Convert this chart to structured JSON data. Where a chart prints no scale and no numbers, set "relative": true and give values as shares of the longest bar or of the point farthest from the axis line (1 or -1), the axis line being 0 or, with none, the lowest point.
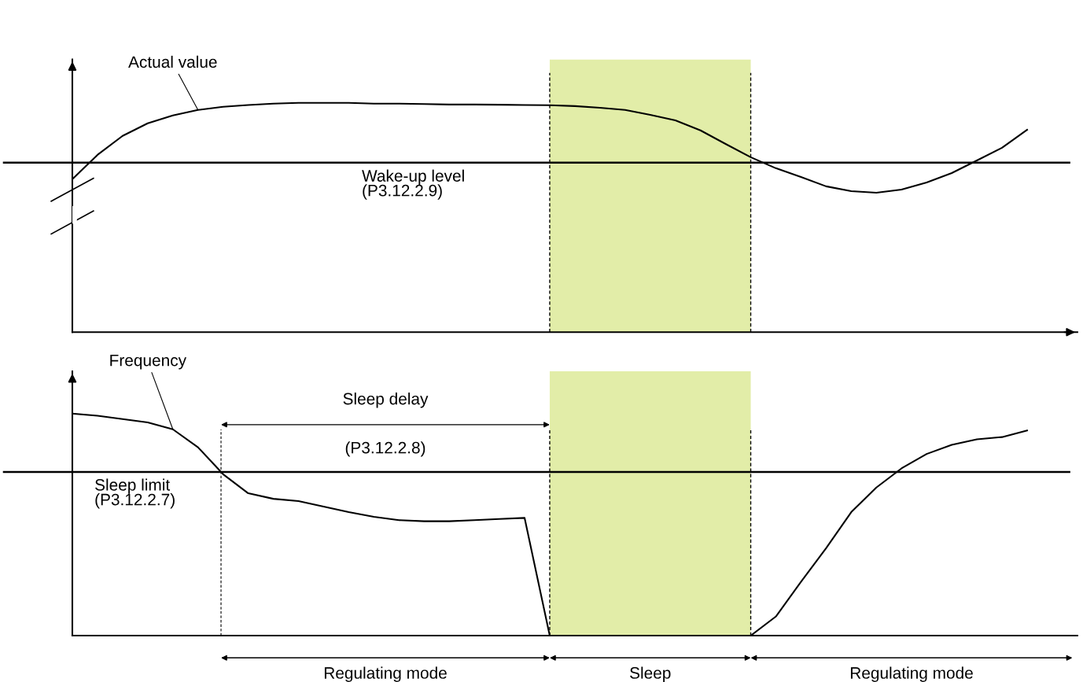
{
  "chart_data": [
    {
      "type": "line",
      "relative": true,
      "categories": [
        null,
        null,
        null,
        null,
        null,
        null,
        null,
        null,
        null,
        null,
        null,
        null,
        null,
        null,
        null,
        null,
        null,
        null,
        null,
        null,
        null,
        null,
        null,
        null,
        null,
        null,
        null,
        null,
        null,
        null,
        null,
        null,
        null,
        null,
        null,
        null,
        null,
        null,
        null,
        null,
        null
      ],
      "series": [
        {
          "name": "Actual value",
          "color": "#000000",
          "values": [
            0.667,
            0.773,
            0.856,
            0.911,
            0.945,
            0.969,
            0.983,
            0.991,
            0.997,
            1.0,
            1.0,
            1.0,
            0.997,
            0.997,
            0.995,
            0.993,
            0.993,
            0.992,
            0.991,
            0.99,
            0.986,
            0.979,
            0.969,
            0.948,
            0.924,
            0.88,
            0.821,
            0.763,
            0.715,
            0.677,
            0.636,
            0.615,
            0.608,
            0.622,
            0.653,
            0.694,
            0.749,
            0.804,
            0.883,
            null,
            null
          ]
        }
      ],
      "ref_lines": [
        {
          "axis": "y",
          "value": 0.739,
          "label": "Wake-up level\n(P3.12.2.9)",
          "color": "#000000",
          "line_style": "solid"
        }
      ]
    },
    {
      "type": "line",
      "relative": true,
      "categories": [
        null,
        null,
        null,
        null,
        null,
        null,
        null,
        null,
        null,
        null,
        null,
        null,
        null,
        null,
        null,
        null,
        null,
        null,
        null,
        null,
        null,
        null,
        null,
        null,
        null,
        null,
        null,
        null,
        null,
        null,
        null,
        null,
        null,
        null,
        null,
        null,
        null,
        null,
        null,
        null,
        null
      ],
      "series": [
        {
          "name": "Frequency",
          "color": "#000000",
          "values": [
            1.0,
            0.99,
            0.975,
            0.96,
            0.929,
            0.848,
            0.727,
            0.641,
            0.616,
            0.606,
            0.581,
            0.556,
            0.535,
            0.52,
            0.515,
            0.515,
            0.52,
            0.525,
            0.53,
            0,
            0,
            0,
            0,
            0,
            0,
            0,
            0,
            0,
            0.086,
            0.242,
            0.394,
            0.556,
            0.667,
            0.753,
            0.818,
            0.859,
            0.884,
            0.894,
            0.924,
            null,
            null
          ]
        }
      ],
      "ref_lines": [
        {
          "axis": "y",
          "value": 0.737,
          "label": "Sleep limit\n(P3.12.2.7)",
          "color": "#000000",
          "line_style": "solid"
        }
      ],
      "annotations": [
        "Sleep delay",
        "(P3.12.2.8)",
        "Regulating mode",
        "Sleep",
        "Regulating mode"
      ]
    }
  ]
}
